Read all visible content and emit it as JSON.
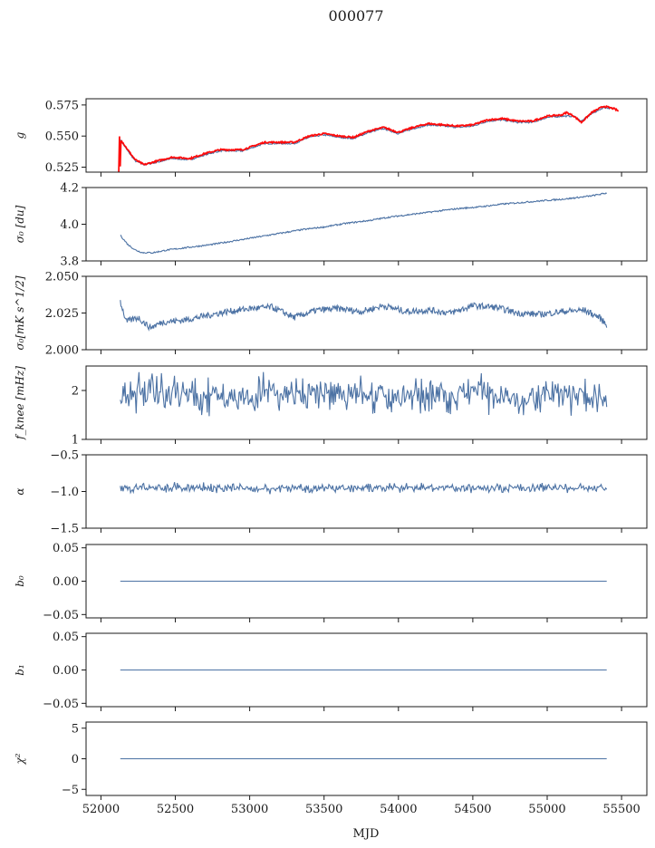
{
  "figure": {
    "title": "000077",
    "xlabel": "MJD"
  },
  "colors": {
    "series": "#4c72a4",
    "overlay": "#ff0000",
    "axis": "#1a1a1a"
  },
  "chart_data": [
    {
      "type": "line",
      "ylabel": "g",
      "xlim": [
        51900,
        55670
      ],
      "ylim": [
        0.521,
        0.58
      ],
      "yticks": [
        "0.525",
        "0.550",
        "0.575"
      ],
      "ytick_values": [
        0.525,
        0.55,
        0.575
      ],
      "xticks": [
        52000,
        52500,
        53000,
        53500,
        54000,
        54500,
        55000,
        55500
      ],
      "series": [
        {
          "role": "model",
          "x": [
            52130,
            52180,
            52230,
            52290,
            52380,
            52480,
            52600,
            52700,
            52800,
            52950,
            53100,
            53200,
            53300,
            53400,
            53500,
            53600,
            53700,
            53800,
            53900,
            54000,
            54100,
            54200,
            54300,
            54400,
            54500,
            54600,
            54700,
            54800,
            54900,
            55000,
            55100,
            55180,
            55230,
            55300,
            55380,
            55450
          ],
          "y": [
            0.547,
            0.538,
            0.53,
            0.527,
            0.529,
            0.532,
            0.531,
            0.535,
            0.538,
            0.538,
            0.544,
            0.544,
            0.544,
            0.549,
            0.551,
            0.549,
            0.548,
            0.553,
            0.556,
            0.552,
            0.556,
            0.559,
            0.558,
            0.557,
            0.558,
            0.562,
            0.563,
            0.561,
            0.561,
            0.565,
            0.566,
            0.566,
            0.562,
            0.568,
            0.573,
            0.572
          ]
        },
        {
          "role": "observed",
          "x": [
            52120,
            52125,
            52130,
            52135,
            52140,
            52180,
            52230,
            52290,
            52380,
            52480,
            52600,
            52700,
            52800,
            52950,
            53100,
            53200,
            53300,
            53400,
            53500,
            53600,
            53700,
            53800,
            53900,
            54000,
            54100,
            54200,
            54300,
            54400,
            54500,
            54600,
            54700,
            54800,
            54900,
            55000,
            55100,
            55130,
            55180,
            55230,
            55300,
            55380,
            55450,
            55480
          ],
          "y": [
            0.521,
            0.551,
            0.524,
            0.549,
            0.546,
            0.539,
            0.531,
            0.527,
            0.53,
            0.533,
            0.532,
            0.536,
            0.539,
            0.539,
            0.545,
            0.545,
            0.545,
            0.55,
            0.552,
            0.55,
            0.549,
            0.554,
            0.557,
            0.553,
            0.557,
            0.56,
            0.559,
            0.558,
            0.559,
            0.563,
            0.564,
            0.562,
            0.562,
            0.566,
            0.567,
            0.569,
            0.566,
            0.561,
            0.569,
            0.574,
            0.572,
            0.57
          ]
        }
      ]
    },
    {
      "type": "line",
      "ylabel": "σ₀ [du]",
      "xlim": [
        51900,
        55670
      ],
      "ylim": [
        3.8,
        4.2
      ],
      "yticks": [
        "3.8",
        "4.0",
        "4.2"
      ],
      "ytick_values": [
        3.8,
        4.0,
        4.2
      ],
      "xticks": [
        52000,
        52500,
        53000,
        53500,
        54000,
        54500,
        55000,
        55500
      ],
      "series": [
        {
          "x": [
            52130,
            52180,
            52230,
            52280,
            52350,
            52450,
            52600,
            52750,
            52900,
            53050,
            53200,
            53350,
            53500,
            53650,
            53800,
            53950,
            54100,
            54250,
            54400,
            54550,
            54700,
            54850,
            55000,
            55150,
            55300,
            55400
          ],
          "y": [
            3.94,
            3.89,
            3.86,
            3.845,
            3.845,
            3.86,
            3.875,
            3.89,
            3.91,
            3.93,
            3.95,
            3.97,
            3.985,
            4.005,
            4.02,
            4.04,
            4.055,
            4.07,
            4.085,
            4.095,
            4.11,
            4.12,
            4.13,
            4.14,
            4.155,
            4.17
          ]
        }
      ]
    },
    {
      "type": "line",
      "ylabel": "σ₀[mK s^1/2]",
      "xlim": [
        51900,
        55670
      ],
      "ylim": [
        2.0,
        2.05
      ],
      "yticks": [
        "2.000",
        "2.025",
        "2.050"
      ],
      "ytick_values": [
        2.0,
        2.025,
        2.05
      ],
      "xticks": [
        52000,
        52500,
        53000,
        53500,
        54000,
        54500,
        55000,
        55500
      ],
      "series": [
        {
          "x": [
            52130,
            52170,
            52250,
            52330,
            52420,
            52550,
            52700,
            52850,
            53000,
            53150,
            53300,
            53450,
            53600,
            53750,
            53900,
            54050,
            54200,
            54350,
            54500,
            54650,
            54800,
            54950,
            55100,
            55250,
            55350,
            55400
          ],
          "y": [
            2.033,
            2.019,
            2.022,
            2.015,
            2.019,
            2.02,
            2.023,
            2.026,
            2.028,
            2.029,
            2.022,
            2.027,
            2.028,
            2.026,
            2.03,
            2.026,
            2.027,
            2.025,
            2.03,
            2.029,
            2.025,
            2.024,
            2.026,
            2.027,
            2.022,
            2.017
          ]
        }
      ]
    },
    {
      "type": "line",
      "ylabel": "f_knee [mHz]",
      "xlim": [
        51900,
        55670
      ],
      "ylim": [
        1.0,
        2.5
      ],
      "yticks": [
        "1",
        "2"
      ],
      "ytick_values": [
        1,
        2
      ],
      "xticks": [
        52000,
        52500,
        53000,
        53500,
        54000,
        54500,
        55000,
        55500
      ],
      "series": [
        {
          "x": [
            52130,
            52300,
            52500,
            52700,
            52900,
            53100,
            53300,
            53500,
            53700,
            53900,
            54100,
            54300,
            54500,
            54700,
            54900,
            55100,
            55300,
            55400
          ],
          "y": [
            1.9,
            2.0,
            1.95,
            1.9,
            1.85,
            1.95,
            1.9,
            1.9,
            1.95,
            1.85,
            1.9,
            1.9,
            1.95,
            1.9,
            1.85,
            1.9,
            1.85,
            1.85
          ],
          "noise": 0.28
        }
      ]
    },
    {
      "type": "line",
      "ylabel": "α",
      "xlim": [
        51900,
        55670
      ],
      "ylim": [
        -1.5,
        -0.5
      ],
      "yticks": [
        "−1.5",
        "−1.0",
        "−0.5"
      ],
      "ytick_values": [
        -1.5,
        -1.0,
        -0.5
      ],
      "xticks": [
        52000,
        52500,
        53000,
        53500,
        54000,
        54500,
        55000,
        55500
      ],
      "series": [
        {
          "x": [
            52130,
            52400,
            52800,
            53200,
            53600,
            54000,
            54400,
            54800,
            55200,
            55400
          ],
          "y": [
            -0.96,
            -0.95,
            -0.95,
            -0.96,
            -0.95,
            -0.96,
            -0.95,
            -0.95,
            -0.95,
            -0.95
          ],
          "noise": 0.05
        }
      ]
    },
    {
      "type": "line",
      "ylabel": "b₀",
      "xlim": [
        51900,
        55670
      ],
      "ylim": [
        -0.055,
        0.055
      ],
      "yticks": [
        "−0.05",
        "0.00",
        "0.05"
      ],
      "ytick_values": [
        -0.05,
        0.0,
        0.05
      ],
      "xticks": [
        52000,
        52500,
        53000,
        53500,
        54000,
        54500,
        55000,
        55500
      ],
      "series": [
        {
          "x": [
            52130,
            55400
          ],
          "y": [
            0.0,
            0.0
          ]
        }
      ]
    },
    {
      "type": "line",
      "ylabel": "b₁",
      "xlim": [
        51900,
        55670
      ],
      "ylim": [
        -0.055,
        0.055
      ],
      "yticks": [
        "−0.05",
        "0.00",
        "0.05"
      ],
      "ytick_values": [
        -0.05,
        0.0,
        0.05
      ],
      "xticks": [
        52000,
        52500,
        53000,
        53500,
        54000,
        54500,
        55000,
        55500
      ],
      "series": [
        {
          "x": [
            52130,
            55400
          ],
          "y": [
            0.0,
            0.0
          ]
        }
      ]
    },
    {
      "type": "line",
      "ylabel": "χ²",
      "xlim": [
        51900,
        55670
      ],
      "ylim": [
        -6,
        6
      ],
      "yticks": [
        "−5",
        "0",
        "5"
      ],
      "ytick_values": [
        -5,
        0,
        5
      ],
      "xticks": [
        52000,
        52500,
        53000,
        53500,
        54000,
        54500,
        55000,
        55500
      ],
      "xticklabels": [
        "52000",
        "52500",
        "53000",
        "53500",
        "54000",
        "54500",
        "55000",
        "55500"
      ],
      "series": [
        {
          "x": [
            52130,
            55400
          ],
          "y": [
            0.0,
            0.0
          ]
        }
      ]
    }
  ]
}
